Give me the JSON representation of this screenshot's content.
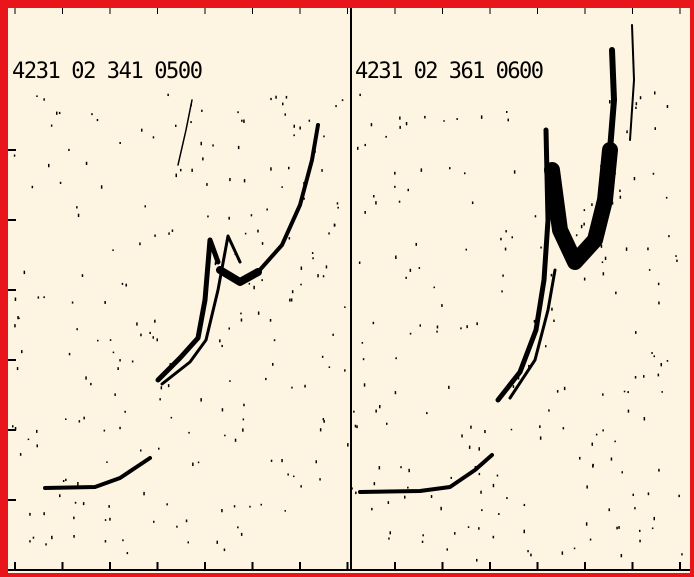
{
  "panels": [
    {
      "label": "4231 02 341 0500"
    },
    {
      "label": "4231 02 361 0600"
    }
  ]
}
